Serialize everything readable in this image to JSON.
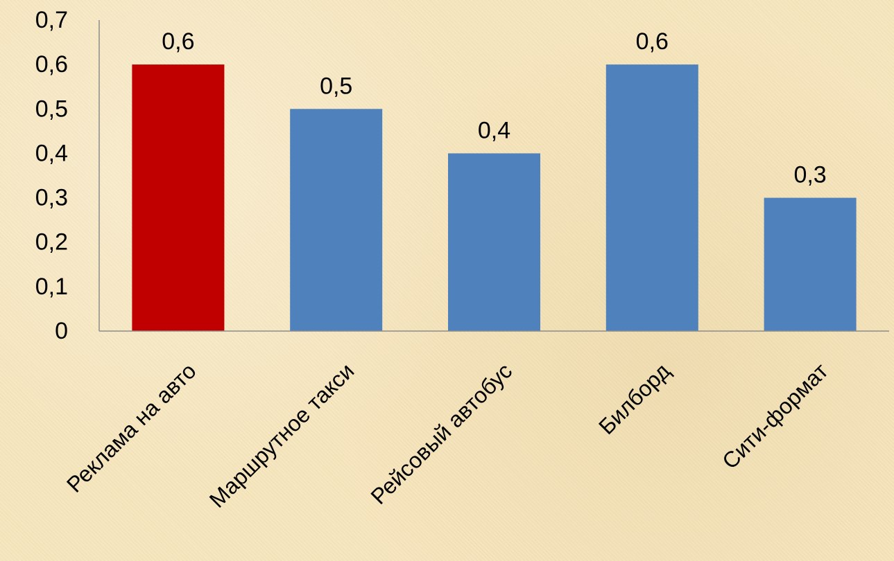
{
  "chart_data": {
    "type": "bar",
    "title": "",
    "xlabel": "",
    "ylabel": "",
    "categories": [
      "Реклама на авто",
      "Маршрутное такси",
      "Рейсовый автобус",
      "Билборд",
      "Сити-формат"
    ],
    "values": [
      0.6,
      0.5,
      0.4,
      0.6,
      0.3
    ],
    "value_labels": [
      "0,6",
      "0,5",
      "0,4",
      "0,6",
      "0,3"
    ],
    "ylim": [
      0,
      0.7
    ],
    "y_ticks": [
      0,
      0.1,
      0.2,
      0.3,
      0.4,
      0.5,
      0.6,
      0.7
    ],
    "y_tick_labels": [
      "0",
      "0,1",
      "0,2",
      "0,3",
      "0,4",
      "0,5",
      "0,6",
      "0,7"
    ],
    "bar_colors": [
      "#c00000",
      "#4f81bd",
      "#4f81bd",
      "#4f81bd",
      "#4f81bd"
    ],
    "grid": false,
    "legend": "none"
  }
}
